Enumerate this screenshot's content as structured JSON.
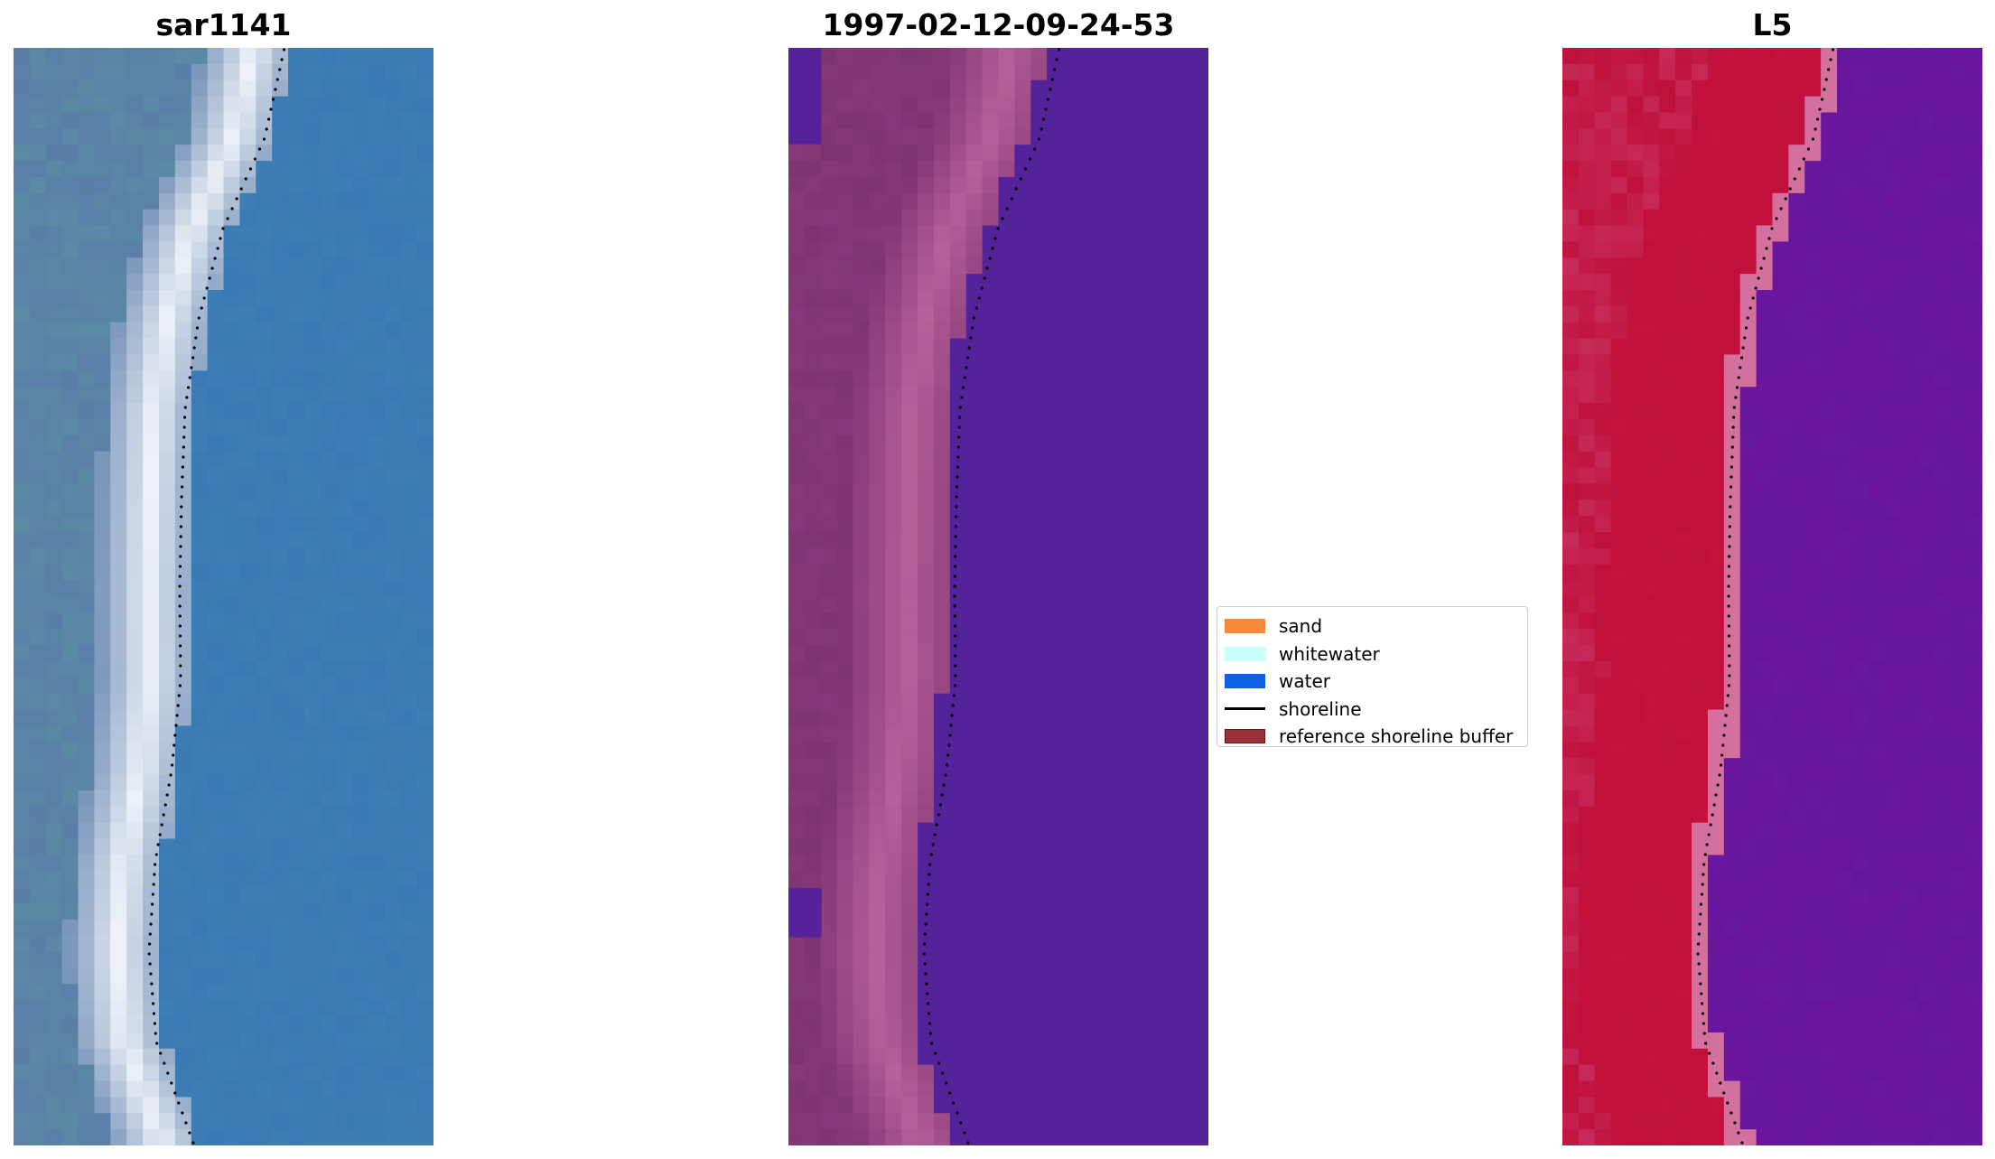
{
  "panels": [
    {
      "title": "sar1141",
      "kind": "rgb-image"
    },
    {
      "title": "1997-02-12-09-24-53",
      "kind": "classified-image"
    },
    {
      "title": "L5",
      "kind": "false-color-image"
    }
  ],
  "legend": {
    "items": [
      {
        "label": "sand",
        "color": "#f68a3b",
        "type": "patch"
      },
      {
        "label": "whitewater",
        "color": "#c8fff8",
        "type": "patch"
      },
      {
        "label": "water",
        "color": "#1060e6",
        "type": "patch"
      },
      {
        "label": "shoreline",
        "color": "#000000",
        "type": "line"
      },
      {
        "label": "reference shoreline buffer",
        "color": "#9a3038",
        "type": "patch",
        "edge": "#5c1a1a"
      }
    ]
  },
  "colors": {
    "rgb_water": "#3a7ab4",
    "rgb_land": "#5a7ea8",
    "rgb_whitewater": "#eef2f8",
    "class_water": "#54239a",
    "class_land": "#7f3472",
    "class_buffer": "#b8609a",
    "fc_land": "#c0103c",
    "fc_water": "#6a159c",
    "fc_transition": "#d4709e",
    "shoreline": "#000000"
  }
}
